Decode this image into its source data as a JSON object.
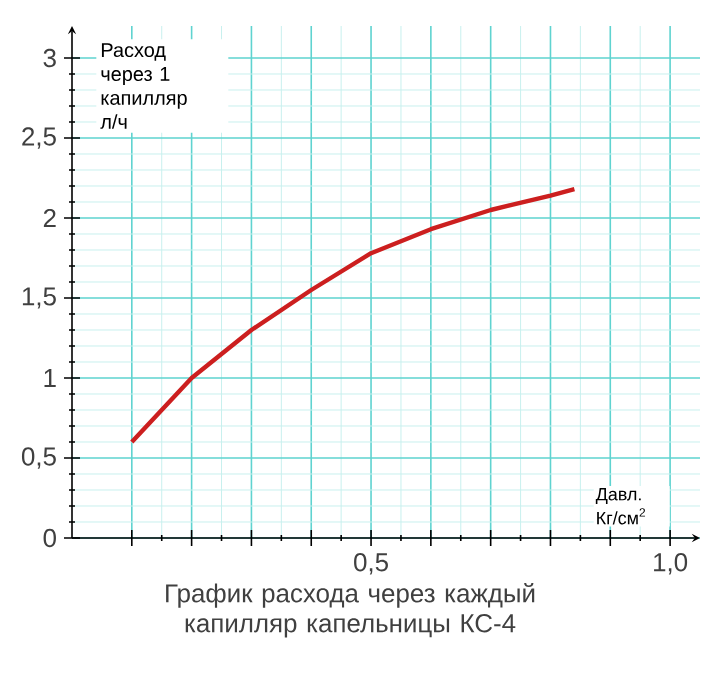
{
  "chart_data": {
    "type": "line",
    "title": "График расхода через каждый капилляр капельницы КС-4",
    "ylabel": "Расход через 1 капилляр л/ч",
    "xlabel": "Давл. Кг/см$^{2}$",
    "x": [
      0.1,
      0.2,
      0.3,
      0.4,
      0.5,
      0.6,
      0.7,
      0.8,
      0.84
    ],
    "values": [
      0.6,
      1.0,
      1.3,
      1.55,
      1.78,
      1.93,
      2.05,
      2.14,
      2.18
    ],
    "color": "#cc1f1f",
    "xlim": [
      0,
      1.05
    ],
    "ylim": [
      0,
      3.2
    ],
    "xticks": [
      {
        "value": 0.1,
        "label": null
      },
      {
        "value": 0.2,
        "label": null
      },
      {
        "value": 0.3,
        "label": null
      },
      {
        "value": 0.4,
        "label": null
      },
      {
        "value": 0.5,
        "label": "0,5"
      },
      {
        "value": 0.6,
        "label": null
      },
      {
        "value": 0.7,
        "label": null
      },
      {
        "value": 0.8,
        "label": null
      },
      {
        "value": 0.9,
        "label": null
      },
      {
        "value": 1.0,
        "label": "1,0"
      }
    ],
    "yticks": [
      0,
      {
        "value": 0.5,
        "label": "0,5"
      },
      1,
      {
        "value": 1.5,
        "label": "1,5"
      },
      2,
      {
        "value": 2.5,
        "label": "2,5"
      },
      3
    ],
    "grid": true,
    "marker": "none",
    "line_style": "solid"
  }
}
